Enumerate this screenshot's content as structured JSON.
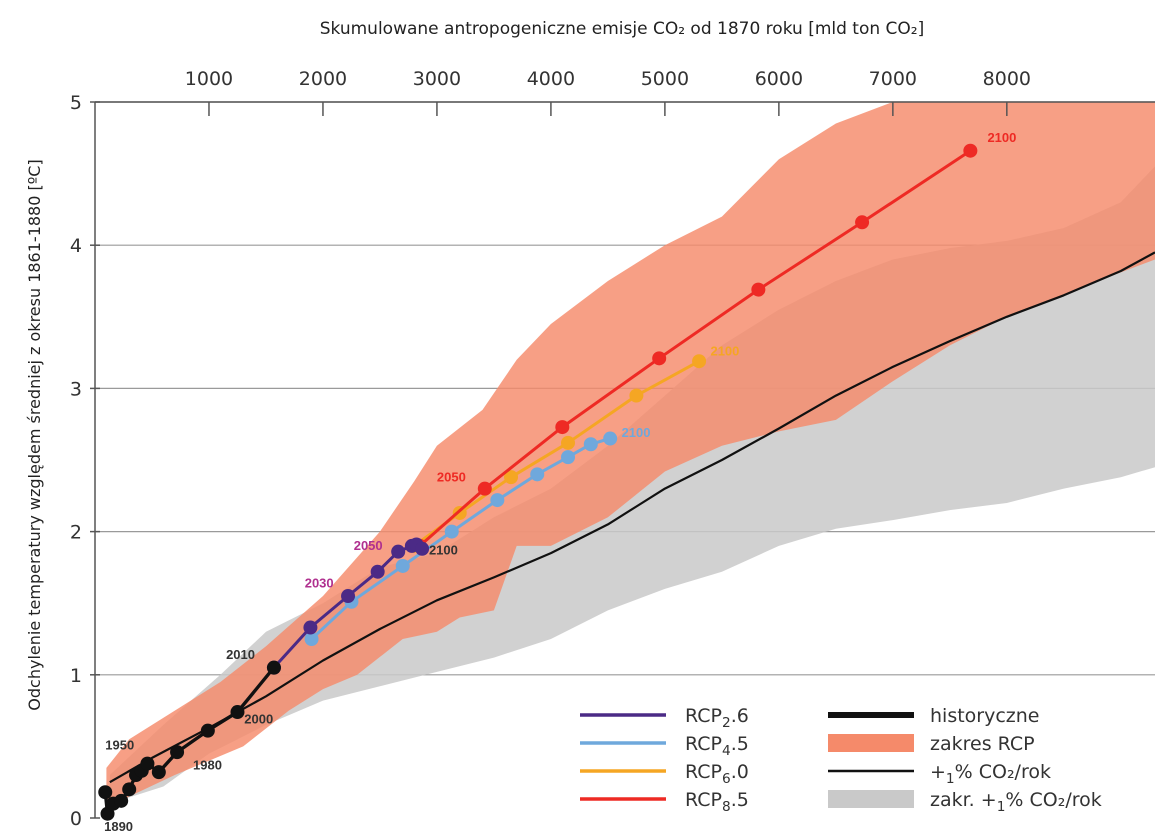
{
  "chart_data": {
    "type": "line",
    "title": "Skumulowane antropogeniczne emisje CO₂ od 1870 roku [mld ton CO₂]",
    "ylabel": "Odchylenie temperatury względem średniej z okresu 1861-1880 [ºC]",
    "xlim": [
      0,
      9300
    ],
    "ylim": [
      0,
      5
    ],
    "x_ticks": [
      "1000",
      "2000",
      "3000",
      "4000",
      "5000",
      "6000",
      "7000",
      "8000"
    ],
    "x_tick_values": [
      1000,
      2000,
      3000,
      4000,
      5000,
      6000,
      7000,
      8000
    ],
    "y_ticks": [
      "0",
      "1",
      "2",
      "3",
      "4",
      "5"
    ],
    "y_tick_values": [
      0,
      1,
      2,
      3,
      4,
      5
    ],
    "x_axis_position": "top",
    "grid": "horizontal",
    "legend_position": "bottom-right",
    "colors": {
      "rcp26": "#4b2a86",
      "rcp45": "#6fa8dc",
      "rcp60": "#f5a623",
      "rcp85": "#ee2a24",
      "historical": "#111111",
      "rcp_range": "#f58a6a",
      "onepercent_range": "#c9c9c9",
      "onepercent_line": "#111111"
    },
    "shaded_ranges": [
      {
        "key": "onepercent_range",
        "upper": [
          [
            130,
            0.3
          ],
          [
            600,
            0.65
          ],
          [
            1100,
            1.0
          ],
          [
            1500,
            1.3
          ],
          [
            2000,
            1.5
          ],
          [
            2500,
            1.75
          ],
          [
            3000,
            1.85
          ],
          [
            3500,
            2.1
          ],
          [
            4000,
            2.3
          ],
          [
            4500,
            2.6
          ],
          [
            5000,
            2.95
          ],
          [
            5500,
            3.3
          ],
          [
            6000,
            3.55
          ],
          [
            6500,
            3.75
          ],
          [
            7000,
            3.9
          ],
          [
            7500,
            3.98
          ],
          [
            8000,
            4.03
          ],
          [
            8500,
            4.12
          ],
          [
            9000,
            4.3
          ],
          [
            9300,
            4.55
          ]
        ],
        "lower": [
          [
            9300,
            2.45
          ],
          [
            9000,
            2.38
          ],
          [
            8500,
            2.3
          ],
          [
            8000,
            2.2
          ],
          [
            7500,
            2.15
          ],
          [
            7000,
            2.08
          ],
          [
            6500,
            2.02
          ],
          [
            6000,
            1.9
          ],
          [
            5500,
            1.72
          ],
          [
            5000,
            1.6
          ],
          [
            4500,
            1.45
          ],
          [
            4000,
            1.25
          ],
          [
            3500,
            1.12
          ],
          [
            3000,
            1.02
          ],
          [
            2500,
            0.92
          ],
          [
            2000,
            0.82
          ],
          [
            1500,
            0.65
          ],
          [
            1000,
            0.45
          ],
          [
            600,
            0.22
          ],
          [
            130,
            0.1
          ]
        ]
      },
      {
        "key": "rcp_range",
        "upper": [
          [
            100,
            0.35
          ],
          [
            300,
            0.55
          ],
          [
            700,
            0.75
          ],
          [
            1100,
            0.95
          ],
          [
            1500,
            1.2
          ],
          [
            2000,
            1.55
          ],
          [
            2500,
            2.0
          ],
          [
            2800,
            2.35
          ],
          [
            3000,
            2.6
          ],
          [
            3400,
            2.85
          ],
          [
            3700,
            3.2
          ],
          [
            4000,
            3.45
          ],
          [
            4500,
            3.75
          ],
          [
            5000,
            4.0
          ],
          [
            5500,
            4.2
          ],
          [
            6000,
            4.6
          ],
          [
            6500,
            4.85
          ],
          [
            7000,
            5.0
          ],
          [
            8000,
            5.2
          ],
          [
            9300,
            5.3
          ]
        ],
        "lower": [
          [
            9300,
            3.9
          ],
          [
            8800,
            3.75
          ],
          [
            8000,
            3.5
          ],
          [
            7500,
            3.3
          ],
          [
            7000,
            3.05
          ],
          [
            6500,
            2.78
          ],
          [
            6000,
            2.7
          ],
          [
            5500,
            2.6
          ],
          [
            5000,
            2.42
          ],
          [
            4500,
            2.1
          ],
          [
            4000,
            1.9
          ],
          [
            3700,
            1.9
          ],
          [
            3500,
            1.45
          ],
          [
            3200,
            1.4
          ],
          [
            3000,
            1.3
          ],
          [
            2700,
            1.25
          ],
          [
            2300,
            1.0
          ],
          [
            2000,
            0.9
          ],
          [
            1700,
            0.75
          ],
          [
            1300,
            0.5
          ],
          [
            1000,
            0.4
          ],
          [
            700,
            0.3
          ],
          [
            300,
            0.15
          ],
          [
            100,
            0.05
          ]
        ]
      }
    ],
    "series": [
      {
        "name": "+1% CO₂/rok",
        "key": "onepercent_line",
        "line_only": true,
        "x": [
          130,
          500,
          1000,
          1500,
          2000,
          2500,
          3000,
          3500,
          4000,
          4500,
          5000,
          5500,
          6000,
          6500,
          7000,
          7500,
          8000,
          8500,
          9000,
          9300
        ],
        "y": [
          0.25,
          0.42,
          0.63,
          0.85,
          1.1,
          1.32,
          1.52,
          1.68,
          1.85,
          2.05,
          2.3,
          2.5,
          2.72,
          2.95,
          3.15,
          3.33,
          3.5,
          3.65,
          3.82,
          3.95
        ]
      },
      {
        "name": "RCP4.5",
        "key": "rcp45",
        "x": [
          1900,
          2250,
          2700,
          3130,
          3530,
          3880,
          4150,
          4350,
          4520
        ],
        "y": [
          1.25,
          1.51,
          1.76,
          2.0,
          2.22,
          2.4,
          2.52,
          2.61,
          2.65
        ]
      },
      {
        "name": "RCP6.0",
        "key": "rcp60",
        "x": [
          2800,
          3200,
          3650,
          4150,
          4750,
          5300
        ],
        "y": [
          1.9,
          2.13,
          2.38,
          2.62,
          2.95,
          3.19
        ]
      },
      {
        "name": "RCP8.5",
        "key": "rcp85",
        "x": [
          2850,
          3420,
          4100,
          4950,
          5820,
          6730,
          7680
        ],
        "y": [
          1.9,
          2.3,
          2.73,
          3.21,
          3.69,
          4.16,
          4.66
        ]
      },
      {
        "name": "RCP2.6",
        "key": "rcp26",
        "x": [
          1570,
          1890,
          2220,
          2480,
          2660,
          2780,
          2820,
          2870
        ],
        "y": [
          1.05,
          1.33,
          1.55,
          1.72,
          1.86,
          1.9,
          1.91,
          1.88
        ]
      },
      {
        "name": "historyczne",
        "key": "historical",
        "x": [
          90,
          110,
          160,
          230,
          300,
          360,
          410,
          460,
          560,
          720,
          990,
          1250,
          1570
        ],
        "y": [
          0.18,
          0.03,
          0.1,
          0.12,
          0.2,
          0.3,
          0.33,
          0.38,
          0.32,
          0.46,
          0.61,
          0.74,
          1.05
        ]
      }
    ],
    "annotations": [
      {
        "text": "1890",
        "color": "#333333",
        "x": 80,
        "y": -0.09
      },
      {
        "text": "1950",
        "color": "#333333",
        "x": 90,
        "y": 0.48
      },
      {
        "text": "1980",
        "color": "#333333",
        "x": 860,
        "y": 0.34
      },
      {
        "text": "2000",
        "color": "#333333",
        "x": 1310,
        "y": 0.66
      },
      {
        "text": "2010",
        "color": "#333333",
        "x": 1150,
        "y": 1.11
      },
      {
        "text": "2030",
        "color": "#b0308f",
        "x": 1840,
        "y": 1.61
      },
      {
        "text": "2050",
        "color": "#b0308f",
        "x": 2270,
        "y": 1.87
      },
      {
        "text": "2100",
        "color": "#333333",
        "x": 2930,
        "y": 1.84
      },
      {
        "text": "2050",
        "color": "#ee2a24",
        "x": 3000,
        "y": 2.35
      },
      {
        "text": "2100",
        "color": "#f5a623",
        "x": 5400,
        "y": 3.23
      },
      {
        "text": "2100",
        "color": "#6fa8dc",
        "x": 4620,
        "y": 2.66
      },
      {
        "text": "2100",
        "color": "#ee2a24",
        "x": 7830,
        "y": 4.72
      }
    ],
    "legend": [
      {
        "label": "RCP2.6",
        "key": "rcp26",
        "style": "line"
      },
      {
        "label": "RCP4.5",
        "key": "rcp45",
        "style": "line"
      },
      {
        "label": "RCP6.0",
        "key": "rcp60",
        "style": "line"
      },
      {
        "label": "RCP8.5",
        "key": "rcp85",
        "style": "line"
      },
      {
        "label": "historyczne",
        "key": "historical",
        "style": "thick"
      },
      {
        "label": "zakres RCP",
        "key": "rcp_range",
        "style": "box"
      },
      {
        "label": "+1% CO₂/rok",
        "key": "onepercent_line",
        "style": "line"
      },
      {
        "label": "zakr. +1% CO₂/rok",
        "key": "onepercent_range",
        "style": "box"
      }
    ]
  }
}
